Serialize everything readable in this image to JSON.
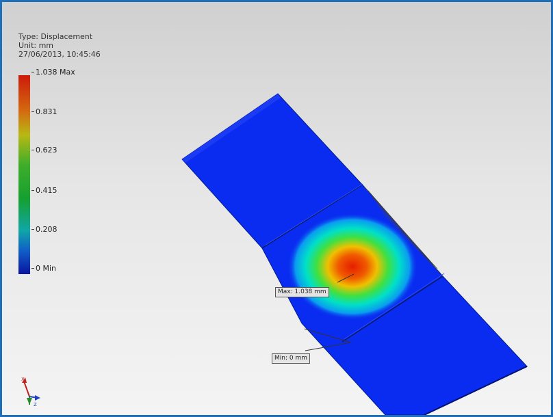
{
  "legend": {
    "type_line": "Type: Displacement",
    "unit_line": "Unit: mm",
    "timestamp": "27/06/2013, 10:45:46",
    "ticks": [
      {
        "label": "1.038 Max",
        "value": 1.038
      },
      {
        "label": "0.831",
        "value": 0.831
      },
      {
        "label": "0.623",
        "value": 0.623
      },
      {
        "label": "0.415",
        "value": 0.415
      },
      {
        "label": "0.208",
        "value": 0.208
      },
      {
        "label": "0 Min",
        "value": 0
      }
    ]
  },
  "probes": {
    "max_label": "Max: 1.038 mm",
    "min_label": "Min: 0 mm"
  },
  "triad": {
    "x": "X",
    "z": "Z"
  },
  "colors": {
    "frame": "#1f6fb8",
    "part_blue": "#0a2cf0",
    "hot_red": "#e61e00"
  }
}
